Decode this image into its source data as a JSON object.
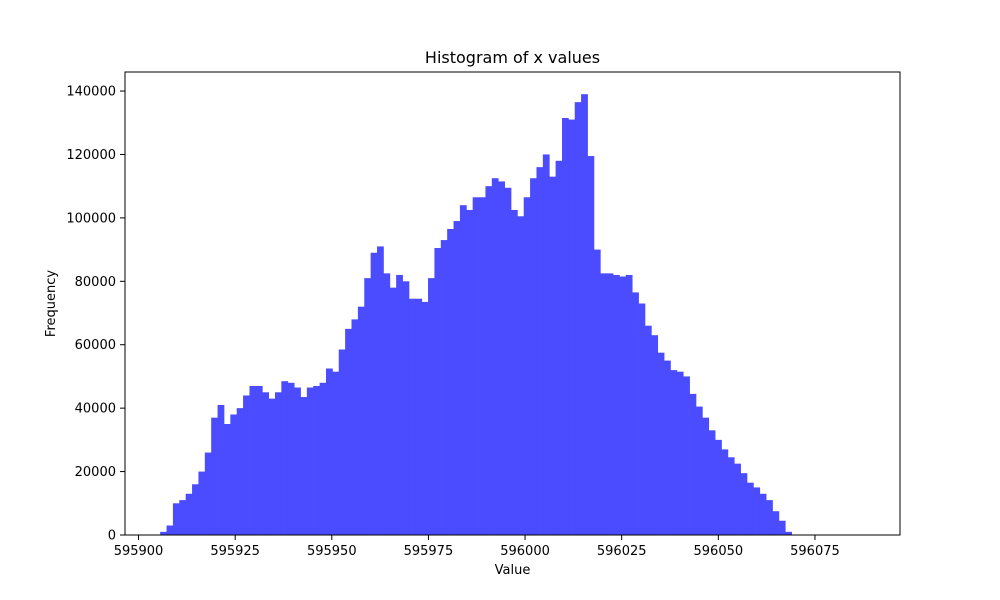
{
  "chart_data": {
    "type": "bar",
    "title": "Histogram of x values",
    "xlabel": "Value",
    "ylabel": "Frequency",
    "bar_color": "#4b4bff",
    "grid": false,
    "legend": "none",
    "xlim": [
      595896.5,
      596097
    ],
    "ylim": [
      0,
      146000
    ],
    "xticks": [
      595900,
      595925,
      595950,
      595975,
      596000,
      596025,
      596050,
      596075
    ],
    "xtick_labels": [
      "595900",
      "595925",
      "595950",
      "595975",
      "596000",
      "596025",
      "596050",
      "596075"
    ],
    "yticks": [
      0,
      20000,
      40000,
      60000,
      80000,
      100000,
      120000,
      140000
    ],
    "ytick_labels": [
      "0",
      "20000",
      "40000",
      "60000",
      "80000",
      "100000",
      "120000",
      "140000"
    ],
    "bin_start": 595905.6,
    "bin_width": 1.65,
    "values": [
      1000,
      3000,
      10000,
      11000,
      13000,
      16000,
      20000,
      26000,
      37000,
      41000,
      35000,
      38000,
      40000,
      44000,
      47000,
      47000,
      45000,
      43000,
      45000,
      48500,
      48000,
      46500,
      43500,
      46500,
      47000,
      48000,
      52500,
      51500,
      58500,
      65000,
      68000,
      72000,
      81000,
      89000,
      91000,
      82500,
      78000,
      82000,
      80000,
      74500,
      74500,
      73500,
      81000,
      90500,
      93000,
      96500,
      99000,
      104000,
      102500,
      106500,
      106500,
      110000,
      112500,
      111500,
      109500,
      102500,
      100500,
      106500,
      112500,
      116000,
      120000,
      113000,
      118000,
      131500,
      131000,
      136500,
      139000,
      119500,
      90000,
      82500,
      82500,
      82000,
      81500,
      82000,
      76500,
      73000,
      66000,
      63000,
      57500,
      55000,
      52000,
      51500,
      50000,
      44500,
      40500,
      37000,
      33000,
      30000,
      27000,
      24500,
      22500,
      19500,
      16500,
      15000,
      13000,
      11000,
      7500,
      4500,
      1000
    ]
  }
}
